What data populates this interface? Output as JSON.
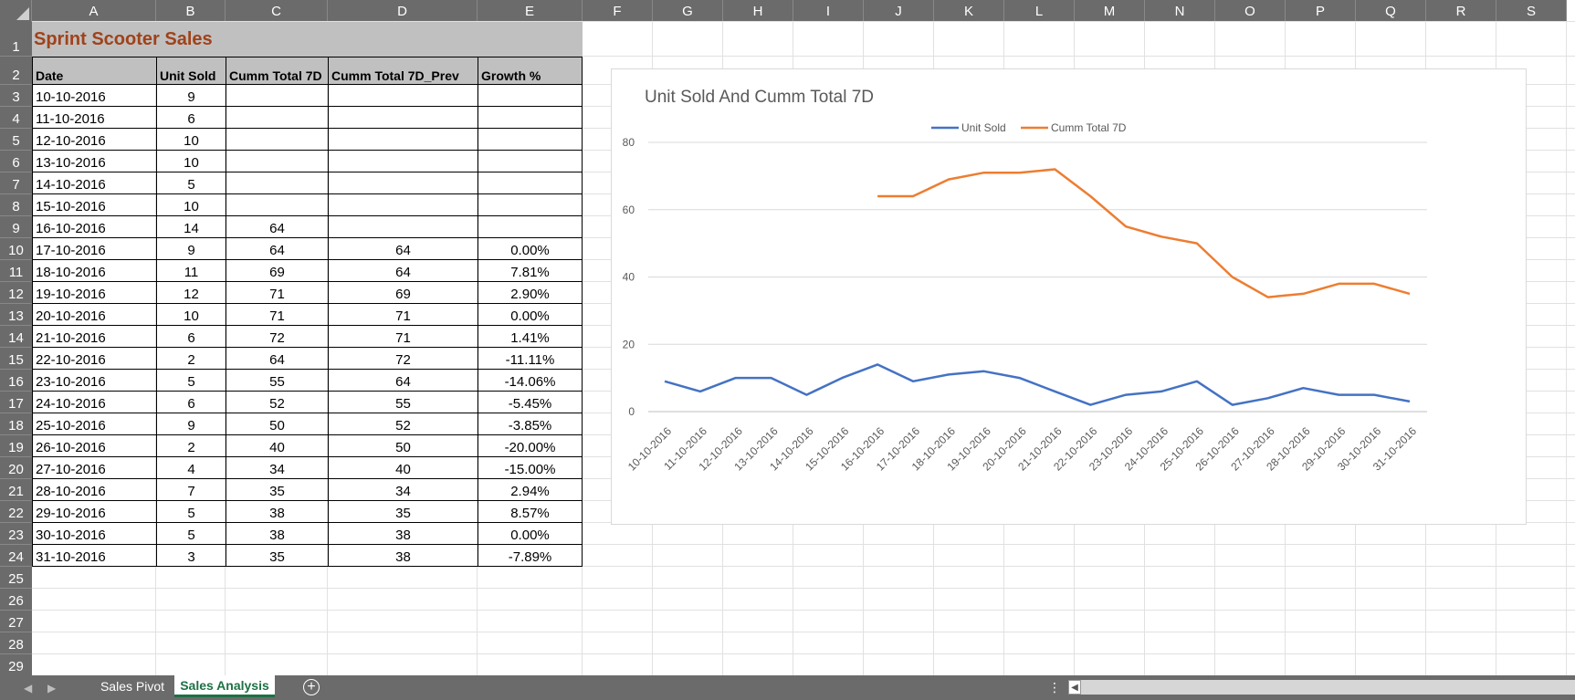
{
  "columns": [
    "A",
    "B",
    "C",
    "D",
    "E",
    "F",
    "G",
    "H",
    "I",
    "J",
    "K",
    "L",
    "M",
    "N",
    "O",
    "P",
    "Q",
    "R",
    "S"
  ],
  "rows": [
    "1",
    "2",
    "3",
    "4",
    "5",
    "6",
    "7",
    "8",
    "9",
    "10",
    "11",
    "12",
    "13",
    "14",
    "15",
    "16",
    "17",
    "18",
    "19",
    "20",
    "21",
    "22",
    "23",
    "24",
    "25",
    "26",
    "27",
    "28",
    "29"
  ],
  "sheet_title": "Sprint Scooter Sales",
  "table_headers": [
    "Date",
    "Unit Sold",
    "Cumm Total 7D",
    "Cumm Total 7D_Prev",
    "Growth %"
  ],
  "table_rows": [
    [
      "10-10-2016",
      "9",
      "",
      "",
      ""
    ],
    [
      "11-10-2016",
      "6",
      "",
      "",
      ""
    ],
    [
      "12-10-2016",
      "10",
      "",
      "",
      ""
    ],
    [
      "13-10-2016",
      "10",
      "",
      "",
      ""
    ],
    [
      "14-10-2016",
      "5",
      "",
      "",
      ""
    ],
    [
      "15-10-2016",
      "10",
      "",
      "",
      ""
    ],
    [
      "16-10-2016",
      "14",
      "64",
      "",
      ""
    ],
    [
      "17-10-2016",
      "9",
      "64",
      "64",
      "0.00%"
    ],
    [
      "18-10-2016",
      "11",
      "69",
      "64",
      "7.81%"
    ],
    [
      "19-10-2016",
      "12",
      "71",
      "69",
      "2.90%"
    ],
    [
      "20-10-2016",
      "10",
      "71",
      "71",
      "0.00%"
    ],
    [
      "21-10-2016",
      "6",
      "72",
      "71",
      "1.41%"
    ],
    [
      "22-10-2016",
      "2",
      "64",
      "72",
      "-11.11%"
    ],
    [
      "23-10-2016",
      "5",
      "55",
      "64",
      "-14.06%"
    ],
    [
      "24-10-2016",
      "6",
      "52",
      "55",
      "-5.45%"
    ],
    [
      "25-10-2016",
      "9",
      "50",
      "52",
      "-3.85%"
    ],
    [
      "26-10-2016",
      "2",
      "40",
      "50",
      "-20.00%"
    ],
    [
      "27-10-2016",
      "4",
      "34",
      "40",
      "-15.00%"
    ],
    [
      "28-10-2016",
      "7",
      "35",
      "34",
      "2.94%"
    ],
    [
      "29-10-2016",
      "5",
      "38",
      "35",
      "8.57%"
    ],
    [
      "30-10-2016",
      "5",
      "38",
      "38",
      "0.00%"
    ],
    [
      "31-10-2016",
      "3",
      "35",
      "38",
      "-7.89%"
    ]
  ],
  "tabs": {
    "sheet1": "Sales Pivot",
    "sheet2": "Sales Analysis",
    "add": "+",
    "dots": "⋮"
  },
  "colors": {
    "unit_sold": "#4472c4",
    "cumm_total": "#ed7d31",
    "title": "#a0421a",
    "active_tab": "#1e7145"
  },
  "chart_data": {
    "type": "line",
    "title": "Unit Sold And Cumm Total 7D",
    "legend_position": "top",
    "grid": true,
    "ylim": [
      0,
      80
    ],
    "yticks": [
      "0",
      "20",
      "40",
      "60",
      "80"
    ],
    "categories": [
      "10-10-2016",
      "11-10-2016",
      "12-10-2016",
      "13-10-2016",
      "14-10-2016",
      "15-10-2016",
      "16-10-2016",
      "17-10-2016",
      "18-10-2016",
      "19-10-2016",
      "20-10-2016",
      "21-10-2016",
      "22-10-2016",
      "23-10-2016",
      "24-10-2016",
      "25-10-2016",
      "26-10-2016",
      "27-10-2016",
      "28-10-2016",
      "29-10-2016",
      "30-10-2016",
      "31-10-2016"
    ],
    "series": [
      {
        "name": "Unit Sold",
        "values": [
          9,
          6,
          10,
          10,
          5,
          10,
          14,
          9,
          11,
          12,
          10,
          6,
          2,
          5,
          6,
          9,
          2,
          4,
          7,
          5,
          5,
          3
        ]
      },
      {
        "name": "Cumm Total 7D",
        "values": [
          null,
          null,
          null,
          null,
          null,
          null,
          64,
          64,
          69,
          71,
          71,
          72,
          64,
          55,
          52,
          50,
          40,
          34,
          35,
          38,
          38,
          35
        ]
      }
    ]
  }
}
